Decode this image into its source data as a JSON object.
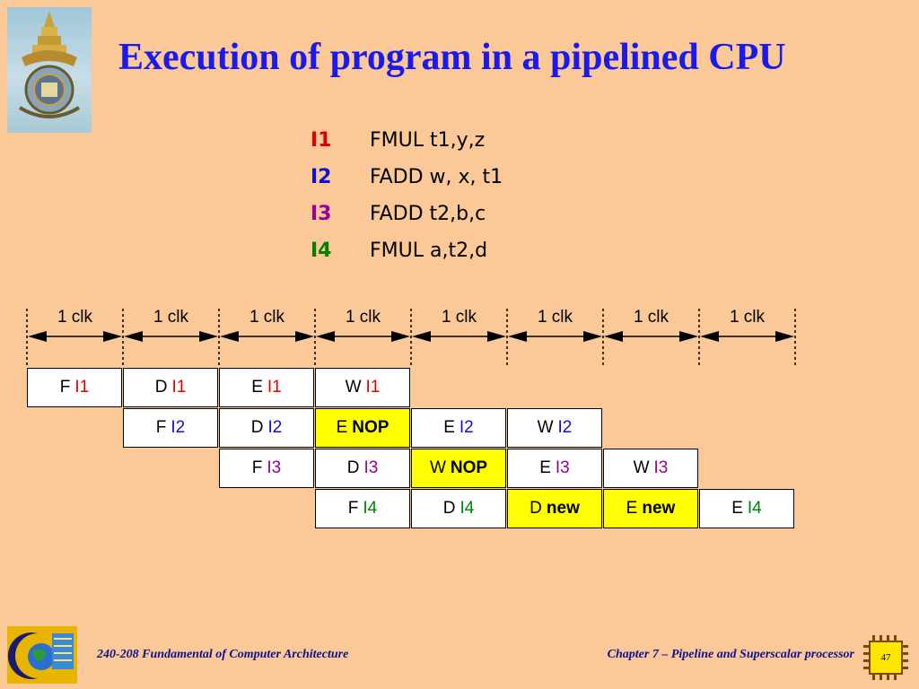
{
  "colors": {
    "title": "#1a1aee",
    "I1": "#e00000",
    "I2": "#1010d0",
    "I3": "#990099",
    "I4": "#008000",
    "highlight": "#ffff00",
    "background": "#fbc998"
  },
  "slide": {
    "title": "Execution of program in a pipelined CPU",
    "page_number": "47"
  },
  "instructions": [
    {
      "id": "I1",
      "op": "FMUL t1,y,z",
      "color": "#e00000"
    },
    {
      "id": "I2",
      "op": "FADD w, x, t1",
      "color": "#1010d0"
    },
    {
      "id": "I3",
      "op": "FADD t2,b,c",
      "color": "#990099"
    },
    {
      "id": "I4",
      "op": "FMUL a,t2,d",
      "color": "#008000"
    }
  ],
  "clock_label": "1 clk",
  "clock_count": 8,
  "pipeline_rows": [
    [
      {
        "stage": "F",
        "instr": "I1",
        "color": "#e00000",
        "bold": false,
        "highlight": false
      },
      {
        "stage": "D",
        "instr": "I1",
        "color": "#e00000",
        "bold": false,
        "highlight": false
      },
      {
        "stage": "E",
        "instr": "I1",
        "color": "#e00000",
        "bold": false,
        "highlight": false
      },
      {
        "stage": "W",
        "instr": "I1",
        "color": "#e00000",
        "bold": false,
        "highlight": false
      }
    ],
    [
      {
        "stage": "F",
        "instr": "I2",
        "color": "#1010d0",
        "bold": false,
        "highlight": false
      },
      {
        "stage": "D",
        "instr": "I2",
        "color": "#1010d0",
        "bold": false,
        "highlight": false
      },
      {
        "stage": "E",
        "instr": "NOP",
        "color": "#000000",
        "bold": true,
        "highlight": true
      },
      {
        "stage": "E",
        "instr": "I2",
        "color": "#1010d0",
        "bold": false,
        "highlight": false
      },
      {
        "stage": "W",
        "instr": "I2",
        "color": "#1010d0",
        "bold": false,
        "highlight": false
      }
    ],
    [
      {
        "stage": "F",
        "instr": "I3",
        "color": "#990099",
        "bold": false,
        "highlight": false
      },
      {
        "stage": "D",
        "instr": "I3",
        "color": "#990099",
        "bold": false,
        "highlight": false
      },
      {
        "stage": "W",
        "instr": "NOP",
        "color": "#000000",
        "bold": true,
        "highlight": true
      },
      {
        "stage": "E",
        "instr": "I3",
        "color": "#990099",
        "bold": false,
        "highlight": false
      },
      {
        "stage": "W",
        "instr": "I3",
        "color": "#990099",
        "bold": false,
        "highlight": false
      }
    ],
    [
      {
        "stage": "F",
        "instr": "I4",
        "color": "#008000",
        "bold": false,
        "highlight": false
      },
      {
        "stage": "D",
        "instr": "I4",
        "color": "#008000",
        "bold": false,
        "highlight": false
      },
      {
        "stage": "D",
        "instr": "new",
        "color": "#000000",
        "bold": true,
        "highlight": true
      },
      {
        "stage": "E",
        "instr": "new",
        "color": "#000000",
        "bold": true,
        "highlight": true
      },
      {
        "stage": "E",
        "instr": "I4",
        "color": "#008000",
        "bold": false,
        "highlight": false
      }
    ]
  ],
  "footer": {
    "course_number": "240",
    "course_rest": "-208 Fundamental of Computer Architecture",
    "chapter": "Chapter 7 – Pipeline and Superscalar processor"
  }
}
